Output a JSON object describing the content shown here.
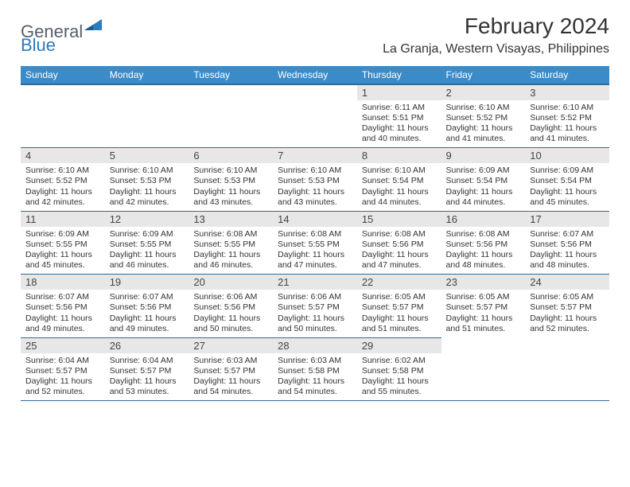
{
  "brand": {
    "general": "General",
    "blue": "Blue"
  },
  "title": "February 2024",
  "location": "La Granja, Western Visayas, Philippines",
  "colors": {
    "header_bg": "#3b8bc8",
    "header_border": "#2b6b9f",
    "daynum_bg": "#e7e7e7",
    "text": "#333333",
    "logo_gray": "#555f6a",
    "logo_blue": "#2b7bbf"
  },
  "weekdays": [
    "Sunday",
    "Monday",
    "Tuesday",
    "Wednesday",
    "Thursday",
    "Friday",
    "Saturday"
  ],
  "layout": {
    "first_weekday_index": 4,
    "days_in_month": 29
  },
  "days": [
    {
      "n": 1,
      "sunrise": "6:11 AM",
      "sunset": "5:51 PM",
      "daylight": "11 hours and 40 minutes."
    },
    {
      "n": 2,
      "sunrise": "6:10 AM",
      "sunset": "5:52 PM",
      "daylight": "11 hours and 41 minutes."
    },
    {
      "n": 3,
      "sunrise": "6:10 AM",
      "sunset": "5:52 PM",
      "daylight": "11 hours and 41 minutes."
    },
    {
      "n": 4,
      "sunrise": "6:10 AM",
      "sunset": "5:52 PM",
      "daylight": "11 hours and 42 minutes."
    },
    {
      "n": 5,
      "sunrise": "6:10 AM",
      "sunset": "5:53 PM",
      "daylight": "11 hours and 42 minutes."
    },
    {
      "n": 6,
      "sunrise": "6:10 AM",
      "sunset": "5:53 PM",
      "daylight": "11 hours and 43 minutes."
    },
    {
      "n": 7,
      "sunrise": "6:10 AM",
      "sunset": "5:53 PM",
      "daylight": "11 hours and 43 minutes."
    },
    {
      "n": 8,
      "sunrise": "6:10 AM",
      "sunset": "5:54 PM",
      "daylight": "11 hours and 44 minutes."
    },
    {
      "n": 9,
      "sunrise": "6:09 AM",
      "sunset": "5:54 PM",
      "daylight": "11 hours and 44 minutes."
    },
    {
      "n": 10,
      "sunrise": "6:09 AM",
      "sunset": "5:54 PM",
      "daylight": "11 hours and 45 minutes."
    },
    {
      "n": 11,
      "sunrise": "6:09 AM",
      "sunset": "5:55 PM",
      "daylight": "11 hours and 45 minutes."
    },
    {
      "n": 12,
      "sunrise": "6:09 AM",
      "sunset": "5:55 PM",
      "daylight": "11 hours and 46 minutes."
    },
    {
      "n": 13,
      "sunrise": "6:08 AM",
      "sunset": "5:55 PM",
      "daylight": "11 hours and 46 minutes."
    },
    {
      "n": 14,
      "sunrise": "6:08 AM",
      "sunset": "5:55 PM",
      "daylight": "11 hours and 47 minutes."
    },
    {
      "n": 15,
      "sunrise": "6:08 AM",
      "sunset": "5:56 PM",
      "daylight": "11 hours and 47 minutes."
    },
    {
      "n": 16,
      "sunrise": "6:08 AM",
      "sunset": "5:56 PM",
      "daylight": "11 hours and 48 minutes."
    },
    {
      "n": 17,
      "sunrise": "6:07 AM",
      "sunset": "5:56 PM",
      "daylight": "11 hours and 48 minutes."
    },
    {
      "n": 18,
      "sunrise": "6:07 AM",
      "sunset": "5:56 PM",
      "daylight": "11 hours and 49 minutes."
    },
    {
      "n": 19,
      "sunrise": "6:07 AM",
      "sunset": "5:56 PM",
      "daylight": "11 hours and 49 minutes."
    },
    {
      "n": 20,
      "sunrise": "6:06 AM",
      "sunset": "5:56 PM",
      "daylight": "11 hours and 50 minutes."
    },
    {
      "n": 21,
      "sunrise": "6:06 AM",
      "sunset": "5:57 PM",
      "daylight": "11 hours and 50 minutes."
    },
    {
      "n": 22,
      "sunrise": "6:05 AM",
      "sunset": "5:57 PM",
      "daylight": "11 hours and 51 minutes."
    },
    {
      "n": 23,
      "sunrise": "6:05 AM",
      "sunset": "5:57 PM",
      "daylight": "11 hours and 51 minutes."
    },
    {
      "n": 24,
      "sunrise": "6:05 AM",
      "sunset": "5:57 PM",
      "daylight": "11 hours and 52 minutes."
    },
    {
      "n": 25,
      "sunrise": "6:04 AM",
      "sunset": "5:57 PM",
      "daylight": "11 hours and 52 minutes."
    },
    {
      "n": 26,
      "sunrise": "6:04 AM",
      "sunset": "5:57 PM",
      "daylight": "11 hours and 53 minutes."
    },
    {
      "n": 27,
      "sunrise": "6:03 AM",
      "sunset": "5:57 PM",
      "daylight": "11 hours and 54 minutes."
    },
    {
      "n": 28,
      "sunrise": "6:03 AM",
      "sunset": "5:58 PM",
      "daylight": "11 hours and 54 minutes."
    },
    {
      "n": 29,
      "sunrise": "6:02 AM",
      "sunset": "5:58 PM",
      "daylight": "11 hours and 55 minutes."
    }
  ],
  "labels": {
    "sunrise": "Sunrise:",
    "sunset": "Sunset:",
    "daylight": "Daylight:"
  }
}
